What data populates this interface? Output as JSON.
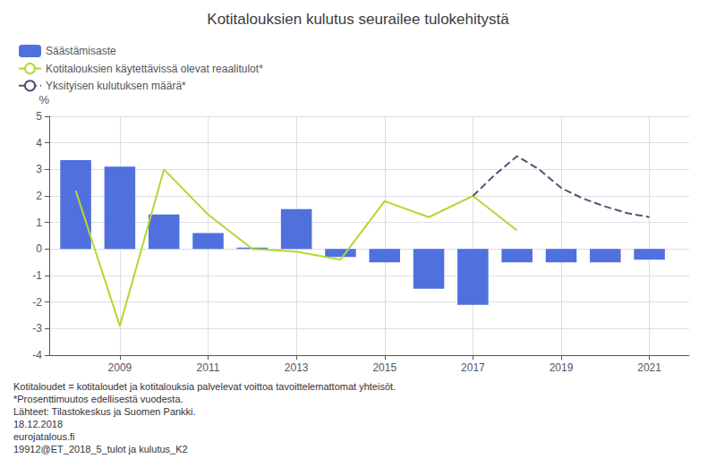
{
  "chart_data": {
    "type": "bar",
    "title": "Kotitalouksien kulutus seurailee tulokehitystä",
    "ylabel": "%",
    "xlim": [
      2007.4,
      2021.9
    ],
    "xticks": [
      2009,
      2011,
      2013,
      2015,
      2017,
      2019,
      2021
    ],
    "ylim": [
      -4,
      5
    ],
    "yticks": [
      -4,
      -3,
      -2,
      -1,
      0,
      1,
      2,
      3,
      4,
      5
    ],
    "grid": true,
    "legend": "upper left",
    "series": [
      {
        "name": "Säästämisaste",
        "type": "bar",
        "x": [
          2008,
          2009,
          2010,
          2011,
          2012,
          2013,
          2014,
          2015,
          2016,
          2017,
          2018,
          2019,
          2020,
          2021
        ],
        "values": [
          3.35,
          3.1,
          1.3,
          0.6,
          0.05,
          1.5,
          -0.3,
          -0.5,
          -1.5,
          -2.1,
          -0.5,
          -0.5,
          -0.5,
          -0.4
        ]
      },
      {
        "name": "Kotitalouksien käytettävissä olevat reaalitulot*",
        "type": "line",
        "line_style": "solid",
        "x": [
          2008,
          2009,
          2010,
          2011,
          2012,
          2013,
          2014,
          2015,
          2016,
          2017,
          2018
        ],
        "values": [
          2.2,
          -2.9,
          3.0,
          1.3,
          0.0,
          -0.1,
          -0.4,
          1.8,
          1.2,
          2.0,
          0.7
        ]
      },
      {
        "name": "Yksityisen kulutuksen määrä*",
        "type": "line",
        "line_style": "dashed",
        "x": [
          2017,
          2017.5,
          2018,
          2018.5,
          2019,
          2019.5,
          2020,
          2020.5,
          2021
        ],
        "values": [
          2.0,
          2.8,
          3.5,
          3.0,
          2.3,
          1.9,
          1.6,
          1.35,
          1.2
        ]
      }
    ],
    "annotations": [
      "Kotitaloudet = kotitaloudet ja kotitalouksia palvelevat voittoa tavoittelemattomat yhteisöt.",
      "*Prosenttimuutos edellisestä vuodesta.",
      "Lähteet: Tilastokeskus ja Suomen Pankki.",
      "18.12.2018",
      "eurojatalous.fi",
      "19912@ET_2018_5_tulot ja kulutus_K2"
    ]
  }
}
